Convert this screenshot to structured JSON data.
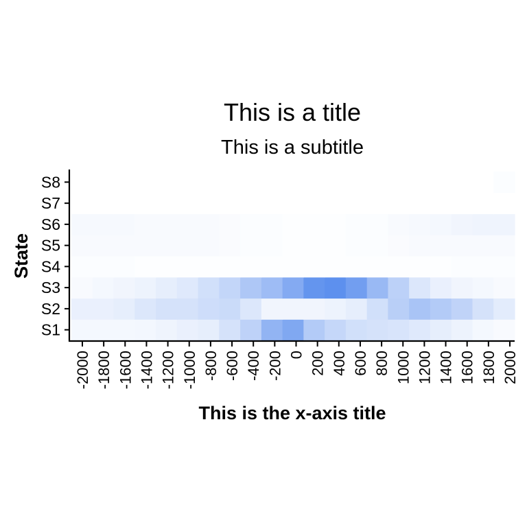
{
  "chart_data": {
    "type": "heatmap",
    "title": "This is a title",
    "subtitle": "This is a subtitle",
    "xlabel": "This is the x-axis title",
    "ylabel": "State",
    "x": [
      -2000,
      -1800,
      -1600,
      -1400,
      -1200,
      -1000,
      -800,
      -600,
      -400,
      -200,
      0,
      200,
      400,
      600,
      800,
      1000,
      1200,
      1400,
      1600,
      1800,
      2000
    ],
    "x_tick_labels": [
      "-2000",
      "-1800",
      "-1600",
      "-1400",
      "-1200",
      "-1000",
      "-800",
      "-600",
      "-400",
      "-200",
      "0",
      "200",
      "400",
      "600",
      "800",
      "1000",
      "1200",
      "1400",
      "1600",
      "1800",
      "2000"
    ],
    "y": [
      "S1",
      "S2",
      "S3",
      "S4",
      "S5",
      "S6",
      "S7",
      "S8"
    ],
    "value_range": [
      0,
      1
    ],
    "colors": {
      "low": "#ffffff",
      "high": "#4f86ec"
    },
    "grid": false,
    "values": [
      [
        0.06,
        0.06,
        0.06,
        0.07,
        0.09,
        0.12,
        0.14,
        0.24,
        0.37,
        0.62,
        0.72,
        0.43,
        0.33,
        0.26,
        0.24,
        0.22,
        0.18,
        0.14,
        0.1,
        0.06,
        0.04
      ],
      [
        0.12,
        0.12,
        0.14,
        0.2,
        0.24,
        0.24,
        0.28,
        0.3,
        0.2,
        0.08,
        0.08,
        0.08,
        0.1,
        0.14,
        0.26,
        0.4,
        0.49,
        0.43,
        0.36,
        0.24,
        0.16
      ],
      [
        0.04,
        0.06,
        0.08,
        0.1,
        0.14,
        0.18,
        0.26,
        0.34,
        0.46,
        0.55,
        0.7,
        0.88,
        0.92,
        0.8,
        0.58,
        0.38,
        0.2,
        0.12,
        0.08,
        0.06,
        0.04
      ],
      [
        0.02,
        0.02,
        0.02,
        0.01,
        0.01,
        0.01,
        0.01,
        0.01,
        0.01,
        0.01,
        0.01,
        0.01,
        0.01,
        0.01,
        0.01,
        0.01,
        0.01,
        0.01,
        0.02,
        0.02,
        0.02
      ],
      [
        0.04,
        0.04,
        0.04,
        0.04,
        0.04,
        0.04,
        0.04,
        0.03,
        0.02,
        0.02,
        0.01,
        0.01,
        0.01,
        0.02,
        0.02,
        0.03,
        0.04,
        0.04,
        0.04,
        0.04,
        0.04
      ],
      [
        0.05,
        0.05,
        0.05,
        0.04,
        0.04,
        0.04,
        0.04,
        0.03,
        0.02,
        0.02,
        0.01,
        0.01,
        0.01,
        0.02,
        0.02,
        0.04,
        0.05,
        0.06,
        0.08,
        0.09,
        0.09
      ],
      [
        0.0,
        0.0,
        0.0,
        0.0,
        0.0,
        0.0,
        0.0,
        0.0,
        0.0,
        0.0,
        0.0,
        0.0,
        0.0,
        0.0,
        0.0,
        0.0,
        0.0,
        0.0,
        0.0,
        0.0,
        0.0
      ],
      [
        0.0,
        0.0,
        0.0,
        0.0,
        0.0,
        0.0,
        0.0,
        0.0,
        0.0,
        0.0,
        0.0,
        0.0,
        0.0,
        0.0,
        0.0,
        0.0,
        0.0,
        0.0,
        0.0,
        0.0,
        0.02
      ]
    ]
  }
}
